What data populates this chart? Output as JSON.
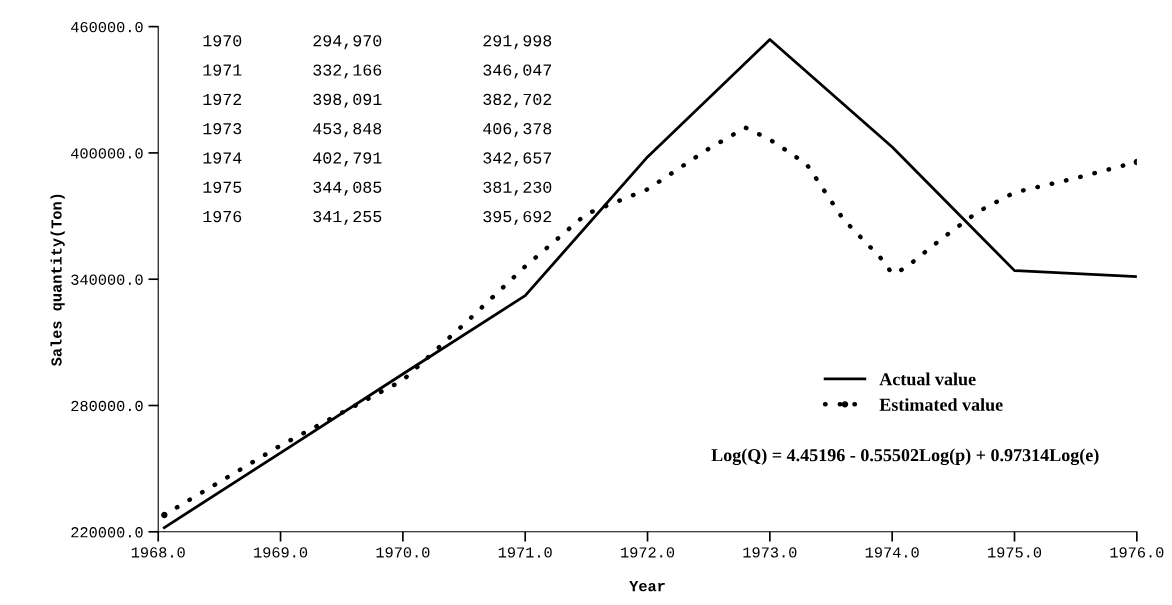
{
  "chart_data": {
    "type": "line",
    "xlabel": "Year",
    "ylabel": "Sales quantity(Ton)",
    "xlim": [
      1968,
      1976
    ],
    "ylim": [
      220000,
      460000
    ],
    "xticks": [
      {
        "value": 1968,
        "label": "1968.0"
      },
      {
        "value": 1969,
        "label": "1969.0"
      },
      {
        "value": 1970,
        "label": "1970.0"
      },
      {
        "value": 1971,
        "label": "1971.0"
      },
      {
        "value": 1972,
        "label": "1972.0"
      },
      {
        "value": 1973,
        "label": "1973.0"
      },
      {
        "value": 1974,
        "label": "1974.0"
      },
      {
        "value": 1975,
        "label": "1975.0"
      },
      {
        "value": 1976,
        "label": "1976.0"
      }
    ],
    "yticks": [
      {
        "value": 220000,
        "label": "220000.0"
      },
      {
        "value": 280000,
        "label": "280000.0"
      },
      {
        "value": 340000,
        "label": "340000.0"
      },
      {
        "value": 400000,
        "label": "400000.0"
      },
      {
        "value": 460000,
        "label": "460000.0"
      }
    ],
    "series": [
      {
        "name": "Actual value",
        "color": "#000000",
        "line_style": "solid",
        "x": [
          1968.05,
          1969,
          1970,
          1971,
          1972,
          1973,
          1974,
          1975,
          1976
        ],
        "values": [
          222000,
          257500,
          294970,
          332166,
          398091,
          453848,
          402791,
          344085,
          341255
        ]
      },
      {
        "name": "Estimated value",
        "color": "#000000",
        "line_style": "dotted",
        "x": [
          1968.05,
          1969,
          1970,
          1970.5,
          1971,
          1971.5,
          1972,
          1972.5,
          1972.8,
          1973,
          1973.3,
          1973.6,
          1973.9,
          1974,
          1974.1,
          1974.4,
          1974.7,
          1975,
          1975.5,
          1976
        ],
        "values": [
          228000,
          261000,
          291998,
          318600,
          346047,
          371000,
          382702,
          402000,
          412000,
          406378,
          394700,
          368500,
          350500,
          342657,
          345000,
          359000,
          372000,
          381230,
          388000,
          395692
        ]
      }
    ],
    "legend": "bottom right",
    "grid": false,
    "annotations": [
      "Log(Q) = 4.45196 - 0.55502Log(p) + 0.97314Log(e)",
      "1970       294,970          291,998",
      "1971       332,166          346,047",
      "1972       398,091          382,702",
      "1973       453,848          406,378",
      "1974       402,791          342,657",
      "1975       344,085          381,230",
      "1976       341,255          395,692"
    ]
  }
}
